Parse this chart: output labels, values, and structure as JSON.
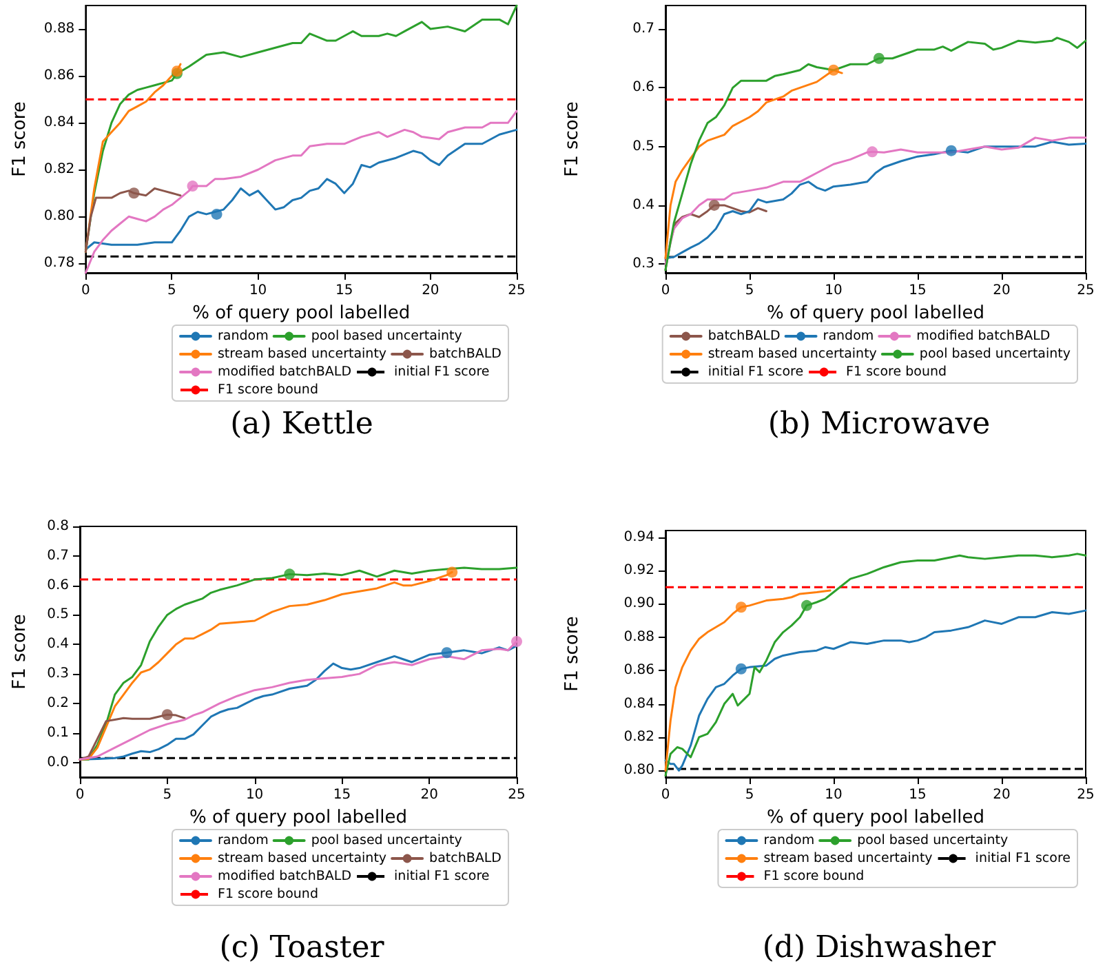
{
  "chart_data": [
    {
      "type": "line",
      "title": "(a) Kettle",
      "xlabel": "% of query pool labelled",
      "ylabel": "F1 score",
      "xlim": [
        0,
        25
      ],
      "xticks": [
        0,
        5,
        10,
        15,
        20,
        25
      ],
      "ylim": [
        0.776,
        0.89
      ],
      "yticks": [
        0.78,
        {
          "value": 0.8,
          "label": "0.80"
        },
        0.82,
        0.84,
        0.86,
        0.88
      ],
      "grid": false,
      "legend": "bottom right",
      "marker": "none",
      "line_style": "solid",
      "series": [
        {
          "name": "random",
          "color": "#1f77b4",
          "x": [
            0,
            0.5,
            1.5,
            3,
            4,
            5,
            5.5,
            6,
            6.5,
            7,
            7.5,
            8,
            8.5,
            9,
            9.5,
            10,
            10.5,
            11,
            11.5,
            12,
            12.5,
            13,
            13.5,
            14,
            14.5,
            15,
            15.5,
            16,
            16.5,
            17,
            18,
            19,
            19.5,
            20,
            20.5,
            21,
            22,
            22.5,
            23,
            23.5,
            24,
            25
          ],
          "values": [
            0.786,
            0.789,
            0.788,
            0.788,
            0.789,
            0.789,
            0.794,
            0.8,
            0.802,
            0.801,
            0.802,
            0.803,
            0.807,
            0.812,
            0.809,
            0.811,
            0.807,
            0.803,
            0.804,
            0.807,
            0.808,
            0.811,
            0.812,
            0.816,
            0.814,
            0.81,
            0.814,
            0.822,
            0.821,
            0.823,
            0.825,
            0.828,
            0.827,
            0.824,
            0.822,
            0.826,
            0.831,
            0.831,
            0.831,
            0.833,
            0.835,
            0.837
          ]
        },
        {
          "name": "pool based uncertainty",
          "color": "#2ca02c",
          "x": [
            0,
            0.5,
            1,
            1.5,
            2,
            2.5,
            3,
            3.5,
            4,
            5,
            5.3,
            6,
            7,
            8,
            9,
            10,
            11,
            12,
            12.5,
            13,
            14,
            14.5,
            15.5,
            16,
            17,
            17.5,
            18,
            18.5,
            19,
            19.5,
            20,
            21,
            22,
            23,
            24,
            24.5,
            25
          ],
          "values": [
            0.785,
            0.81,
            0.828,
            0.84,
            0.848,
            0.852,
            0.854,
            0.855,
            0.856,
            0.858,
            0.861,
            0.864,
            0.869,
            0.87,
            0.868,
            0.87,
            0.872,
            0.874,
            0.874,
            0.878,
            0.875,
            0.875,
            0.879,
            0.877,
            0.877,
            0.878,
            0.877,
            0.879,
            0.881,
            0.883,
            0.88,
            0.881,
            0.879,
            0.884,
            0.884,
            0.882,
            0.89
          ]
        },
        {
          "name": "stream based uncertainty",
          "color": "#ff7f0e",
          "x": [
            0,
            0.5,
            1,
            1.5,
            2,
            2.5,
            3,
            3.5,
            4,
            4.5,
            5,
            5.3,
            5.5
          ],
          "values": [
            0.785,
            0.812,
            0.832,
            0.836,
            0.84,
            0.845,
            0.847,
            0.849,
            0.853,
            0.856,
            0.86,
            0.862,
            0.865
          ]
        },
        {
          "name": "batchBALD",
          "color": "#8c564b",
          "x": [
            0,
            0.3,
            0.6,
            1,
            1.5,
            2,
            2.5,
            2.8,
            3.5,
            4,
            4.5,
            5,
            5.5
          ],
          "values": [
            0.785,
            0.8,
            0.808,
            0.808,
            0.808,
            0.81,
            0.811,
            0.81,
            0.809,
            0.812,
            0.811,
            0.81,
            0.809
          ]
        },
        {
          "name": "modified batchBALD",
          "color": "#e377c2",
          "x": [
            0,
            0.5,
            1,
            1.5,
            2,
            2.5,
            3,
            3.5,
            4,
            4.5,
            5,
            5.5,
            6,
            6.2,
            7,
            7.5,
            8,
            9,
            10,
            11,
            12,
            12.5,
            13,
            14,
            15,
            16,
            17,
            17.5,
            18.5,
            19,
            19.5,
            20.5,
            21,
            22,
            23,
            23.5,
            24.5,
            25
          ],
          "values": [
            0.776,
            0.785,
            0.79,
            0.794,
            0.797,
            0.8,
            0.799,
            0.798,
            0.8,
            0.803,
            0.805,
            0.808,
            0.811,
            0.813,
            0.813,
            0.816,
            0.816,
            0.817,
            0.82,
            0.824,
            0.826,
            0.826,
            0.83,
            0.831,
            0.831,
            0.834,
            0.836,
            0.834,
            0.837,
            0.836,
            0.834,
            0.833,
            0.836,
            0.838,
            0.838,
            0.84,
            0.84,
            0.845
          ]
        },
        {
          "type": "scatter",
          "marker": "circle",
          "color": "#1f77b4",
          "x": [
            7.6
          ],
          "values": [
            0.801
          ]
        },
        {
          "type": "scatter",
          "marker": "circle",
          "color": "#2ca02c",
          "x": [
            5.3
          ],
          "values": [
            0.861
          ]
        },
        {
          "type": "scatter",
          "marker": "circle",
          "color": "#ff7f0e",
          "x": [
            5.3
          ],
          "values": [
            0.862
          ]
        },
        {
          "type": "scatter",
          "marker": "circle",
          "color": "#8c564b",
          "x": [
            2.8
          ],
          "values": [
            0.81
          ]
        },
        {
          "type": "scatter",
          "marker": "circle",
          "color": "#e377c2",
          "x": [
            6.2
          ],
          "values": [
            0.813
          ]
        }
      ],
      "ref_lines": [
        {
          "axis": "y",
          "value": 0.783,
          "label": "initial F1 score",
          "color": "#000000",
          "line_style": "dashed"
        },
        {
          "axis": "y",
          "value": 0.85,
          "label": "F1 score bound",
          "color": "#ff0000",
          "line_style": "dashed"
        }
      ]
    },
    {
      "type": "line",
      "title": "(b) Microwave",
      "xlabel": "% of query pool labelled",
      "ylabel": "F1 score",
      "xlim": [
        0,
        25
      ],
      "xticks": [
        0,
        5,
        10,
        15,
        20,
        25
      ],
      "ylim": [
        0.285,
        0.74
      ],
      "yticks": [
        0.3,
        0.4,
        0.5,
        0.6,
        0.7
      ],
      "grid": false,
      "legend": "bottom right",
      "marker": "none",
      "line_style": "solid",
      "series": [
        {
          "name": "batchBALD",
          "color": "#8c564b",
          "x": [
            0,
            0.3,
            0.6,
            1,
            1.5,
            2,
            2.5,
            2.9,
            3.5,
            4,
            4.5,
            5,
            5.5,
            6
          ],
          "values": [
            0.29,
            0.34,
            0.37,
            0.38,
            0.385,
            0.38,
            0.39,
            0.4,
            0.4,
            0.395,
            0.39,
            0.388,
            0.395,
            0.39
          ]
        },
        {
          "name": "random",
          "color": "#1f77b4",
          "x": [
            0,
            0.5,
            1,
            1.5,
            2,
            2.5,
            3,
            3.5,
            4,
            4.5,
            5,
            5.5,
            6,
            7,
            7.5,
            8,
            8.5,
            9,
            9.5,
            10,
            11,
            12,
            12.5,
            13,
            14,
            15,
            16,
            17,
            18,
            19,
            20,
            21,
            22,
            23,
            24,
            25
          ],
          "values": [
            0.31,
            0.312,
            0.32,
            0.328,
            0.335,
            0.345,
            0.36,
            0.385,
            0.39,
            0.385,
            0.39,
            0.41,
            0.405,
            0.41,
            0.42,
            0.435,
            0.44,
            0.43,
            0.425,
            0.432,
            0.435,
            0.44,
            0.455,
            0.465,
            0.475,
            0.483,
            0.487,
            0.493,
            0.49,
            0.5,
            0.5,
            0.5,
            0.5,
            0.508,
            0.503,
            0.505
          ]
        },
        {
          "name": "modified batchBALD",
          "color": "#e377c2",
          "x": [
            0,
            0.5,
            1,
            1.5,
            2,
            2.5,
            3,
            3.5,
            4,
            5,
            6,
            7,
            8,
            9,
            10,
            11,
            12,
            12.3,
            13,
            14,
            15,
            16,
            17,
            18,
            19,
            20,
            21,
            22,
            23,
            24,
            25
          ],
          "values": [
            0.3,
            0.36,
            0.378,
            0.385,
            0.4,
            0.41,
            0.41,
            0.41,
            0.42,
            0.425,
            0.43,
            0.44,
            0.44,
            0.455,
            0.47,
            0.478,
            0.49,
            0.491,
            0.49,
            0.495,
            0.49,
            0.49,
            0.49,
            0.495,
            0.5,
            0.495,
            0.498,
            0.515,
            0.51,
            0.515,
            0.515
          ]
        },
        {
          "name": "stream based uncertainty",
          "color": "#ff7f0e",
          "x": [
            0,
            0.3,
            0.6,
            1,
            1.5,
            2,
            2.5,
            3,
            3.5,
            4,
            5,
            5.5,
            6,
            7,
            7.5,
            8,
            9,
            10,
            10.5
          ],
          "values": [
            0.31,
            0.4,
            0.44,
            0.46,
            0.48,
            0.5,
            0.51,
            0.515,
            0.52,
            0.535,
            0.55,
            0.56,
            0.575,
            0.585,
            0.595,
            0.6,
            0.61,
            0.63,
            0.625
          ]
        },
        {
          "name": "pool based uncertainty",
          "color": "#2ca02c",
          "x": [
            0,
            0.5,
            1,
            1.5,
            2,
            2.5,
            3,
            3.5,
            4,
            4.5,
            5,
            6,
            6.5,
            7,
            8,
            8.5,
            9,
            10,
            11,
            12,
            12.7,
            13.5,
            14.5,
            15,
            16,
            16.5,
            17,
            18,
            19,
            19.5,
            20,
            21,
            22,
            23,
            23.3,
            24,
            24.5,
            25
          ],
          "values": [
            0.29,
            0.37,
            0.42,
            0.47,
            0.51,
            0.54,
            0.55,
            0.57,
            0.6,
            0.612,
            0.612,
            0.612,
            0.62,
            0.623,
            0.63,
            0.64,
            0.635,
            0.63,
            0.64,
            0.64,
            0.65,
            0.65,
            0.66,
            0.665,
            0.665,
            0.67,
            0.663,
            0.678,
            0.675,
            0.665,
            0.668,
            0.68,
            0.677,
            0.68,
            0.685,
            0.678,
            0.668,
            0.68
          ]
        },
        {
          "type": "scatter",
          "marker": "circle",
          "color": "#8c564b",
          "x": [
            2.9
          ],
          "values": [
            0.4
          ]
        },
        {
          "type": "scatter",
          "marker": "circle",
          "color": "#1f77b4",
          "x": [
            17
          ],
          "values": [
            0.493
          ]
        },
        {
          "type": "scatter",
          "marker": "circle",
          "color": "#e377c2",
          "x": [
            12.3
          ],
          "values": [
            0.491
          ]
        },
        {
          "type": "scatter",
          "marker": "circle",
          "color": "#ff7f0e",
          "x": [
            10
          ],
          "values": [
            0.63
          ]
        },
        {
          "type": "scatter",
          "marker": "circle",
          "color": "#2ca02c",
          "x": [
            12.7
          ],
          "values": [
            0.65
          ]
        }
      ],
      "ref_lines": [
        {
          "axis": "y",
          "value": 0.312,
          "label": "initial F1 score",
          "color": "#000000",
          "line_style": "dashed"
        },
        {
          "axis": "y",
          "value": 0.58,
          "label": "F1 score bound",
          "color": "#ff0000",
          "line_style": "dashed"
        }
      ]
    },
    {
      "type": "line",
      "title": "(c) Toaster",
      "xlabel": "% of query pool labelled",
      "ylabel": "F1 score",
      "xlim": [
        0,
        25
      ],
      "xticks": [
        0,
        5,
        10,
        15,
        20,
        25
      ],
      "ylim": [
        -0.05,
        0.8
      ],
      "yticks": [
        {
          "value": 0,
          "label": "0.0"
        },
        0.1,
        0.2,
        0.3,
        0.4,
        0.5,
        0.6,
        0.7,
        0.8
      ],
      "grid": false,
      "legend": "bottom right",
      "marker": "none",
      "line_style": "solid",
      "series": [
        {
          "name": "random",
          "color": "#1f77b4",
          "x": [
            0,
            1,
            2,
            2.5,
            3,
            3.5,
            4,
            4.5,
            5,
            5.5,
            6,
            6.5,
            7,
            7.5,
            8,
            8.5,
            9,
            9.5,
            10,
            10.5,
            11,
            12,
            13,
            13.5,
            14,
            14.5,
            15,
            15.5,
            16,
            17,
            18,
            18.5,
            19,
            20,
            21,
            22,
            22.5,
            23,
            24,
            24.5,
            25
          ],
          "values": [
            0.01,
            0.012,
            0.015,
            0.02,
            0.03,
            0.038,
            0.035,
            0.045,
            0.06,
            0.08,
            0.08,
            0.095,
            0.125,
            0.155,
            0.17,
            0.18,
            0.185,
            0.2,
            0.215,
            0.225,
            0.23,
            0.25,
            0.26,
            0.28,
            0.31,
            0.335,
            0.32,
            0.315,
            0.32,
            0.34,
            0.36,
            0.35,
            0.34,
            0.365,
            0.372,
            0.38,
            0.375,
            0.37,
            0.39,
            0.38,
            0.395
          ]
        },
        {
          "name": "pool based uncertainty",
          "color": "#2ca02c",
          "x": [
            0,
            0.5,
            1,
            1.5,
            2,
            2.5,
            3,
            3.5,
            4,
            4.5,
            5,
            5.5,
            6,
            7,
            7.5,
            8,
            9,
            10,
            11,
            12,
            13,
            14,
            15,
            16,
            17,
            18,
            19,
            20,
            21,
            22,
            23,
            24,
            25
          ],
          "values": [
            0.01,
            0.01,
            0.06,
            0.13,
            0.23,
            0.27,
            0.29,
            0.33,
            0.41,
            0.46,
            0.5,
            0.52,
            0.535,
            0.555,
            0.575,
            0.585,
            0.6,
            0.62,
            0.625,
            0.638,
            0.635,
            0.64,
            0.635,
            0.65,
            0.63,
            0.65,
            0.64,
            0.65,
            0.655,
            0.66,
            0.655,
            0.655,
            0.66
          ]
        },
        {
          "name": "stream based uncertainty",
          "color": "#ff7f0e",
          "x": [
            0,
            0.5,
            1,
            1.5,
            2,
            2.5,
            3,
            3.5,
            4,
            4.5,
            5,
            5.5,
            6,
            6.5,
            7,
            7.5,
            8,
            9,
            10,
            11,
            12,
            13,
            14,
            15,
            16,
            17,
            18,
            18.5,
            19,
            20,
            21,
            21.3
          ],
          "values": [
            0.01,
            0.012,
            0.05,
            0.12,
            0.19,
            0.23,
            0.27,
            0.305,
            0.315,
            0.34,
            0.37,
            0.4,
            0.42,
            0.42,
            0.435,
            0.45,
            0.47,
            0.475,
            0.48,
            0.51,
            0.53,
            0.535,
            0.55,
            0.57,
            0.58,
            0.59,
            0.61,
            0.6,
            0.6,
            0.615,
            0.635,
            0.645
          ]
        },
        {
          "name": "batchBALD",
          "color": "#8c564b",
          "x": [
            0,
            0.5,
            1,
            1.5,
            2,
            2.5,
            3,
            4,
            4.5,
            5,
            5.5,
            6
          ],
          "values": [
            0.01,
            0.02,
            0.08,
            0.14,
            0.145,
            0.15,
            0.148,
            0.148,
            0.155,
            0.162,
            0.16,
            0.15
          ]
        },
        {
          "name": "modified batchBALD",
          "color": "#e377c2",
          "x": [
            0,
            1,
            2,
            3,
            4,
            5,
            6,
            6.5,
            7,
            8,
            9,
            10,
            11,
            12,
            13,
            14,
            15,
            16,
            17,
            18,
            19,
            20,
            21,
            22,
            23,
            24,
            24.5,
            25
          ],
          "values": [
            0.01,
            0.02,
            0.05,
            0.08,
            0.11,
            0.13,
            0.145,
            0.16,
            0.17,
            0.2,
            0.225,
            0.245,
            0.255,
            0.27,
            0.28,
            0.285,
            0.29,
            0.3,
            0.33,
            0.34,
            0.33,
            0.35,
            0.36,
            0.35,
            0.38,
            0.385,
            0.38,
            0.41
          ]
        },
        {
          "type": "scatter",
          "marker": "circle",
          "color": "#1f77b4",
          "x": [
            21
          ],
          "values": [
            0.372
          ]
        },
        {
          "type": "scatter",
          "marker": "circle",
          "color": "#2ca02c",
          "x": [
            12
          ],
          "values": [
            0.638
          ]
        },
        {
          "type": "scatter",
          "marker": "circle",
          "color": "#ff7f0e",
          "x": [
            21.3
          ],
          "values": [
            0.645
          ]
        },
        {
          "type": "scatter",
          "marker": "circle",
          "color": "#8c564b",
          "x": [
            5
          ],
          "values": [
            0.162
          ]
        },
        {
          "type": "scatter",
          "marker": "circle",
          "color": "#e377c2",
          "x": [
            25
          ],
          "values": [
            0.41
          ]
        }
      ],
      "ref_lines": [
        {
          "axis": "y",
          "value": 0.015,
          "label": "initial F1 score",
          "color": "#000000",
          "line_style": "dashed"
        },
        {
          "axis": "y",
          "value": 0.62,
          "label": "F1 score bound",
          "color": "#ff0000",
          "line_style": "dashed"
        }
      ]
    },
    {
      "type": "line",
      "title": "(d) Dishwasher",
      "xlabel": "% of query pool labelled",
      "ylabel": "F1 score",
      "xlim": [
        0,
        25
      ],
      "xticks": [
        0,
        5,
        10,
        15,
        20,
        25
      ],
      "ylim": [
        0.796,
        0.944
      ],
      "yticks": [
        {
          "value": 0.8,
          "label": "0.80"
        },
        0.82,
        0.84,
        0.86,
        0.88,
        {
          "value": 0.9,
          "label": "0.90"
        },
        0.92,
        0.94
      ],
      "grid": false,
      "legend": "bottom right",
      "marker": "none",
      "line_style": "solid",
      "series": [
        {
          "name": "random",
          "color": "#1f77b4",
          "x": [
            0,
            0.3,
            0.5,
            0.8,
            1,
            1.5,
            2,
            2.5,
            3,
            3.5,
            4,
            4.5,
            5,
            6,
            6.5,
            7,
            8,
            9,
            9.5,
            10,
            11,
            12,
            13,
            14,
            14.5,
            15,
            15.5,
            16,
            17,
            18,
            19,
            20,
            21,
            22,
            23,
            24,
            25
          ],
          "values": [
            0.806,
            0.804,
            0.804,
            0.8,
            0.803,
            0.815,
            0.833,
            0.843,
            0.85,
            0.852,
            0.857,
            0.861,
            0.862,
            0.863,
            0.867,
            0.869,
            0.871,
            0.872,
            0.874,
            0.873,
            0.877,
            0.876,
            0.878,
            0.878,
            0.877,
            0.878,
            0.88,
            0.883,
            0.884,
            0.886,
            0.89,
            0.888,
            0.892,
            0.892,
            0.895,
            0.894,
            0.896
          ]
        },
        {
          "name": "pool based uncertainty",
          "color": "#2ca02c",
          "x": [
            0,
            0.3,
            0.7,
            1,
            1.5,
            2,
            2.5,
            3,
            3.5,
            4,
            4.3,
            4.7,
            5,
            5.3,
            5.6,
            6,
            6.5,
            7,
            7.5,
            8,
            8.4,
            9,
            9.5,
            10,
            11,
            12,
            13,
            14,
            15,
            16,
            17,
            17.5,
            18,
            19,
            20,
            21,
            22,
            23,
            24,
            24.5,
            25
          ],
          "values": [
            0.797,
            0.81,
            0.814,
            0.813,
            0.808,
            0.82,
            0.822,
            0.829,
            0.84,
            0.846,
            0.839,
            0.843,
            0.846,
            0.862,
            0.859,
            0.866,
            0.877,
            0.883,
            0.887,
            0.892,
            0.899,
            0.901,
            0.903,
            0.907,
            0.915,
            0.918,
            0.922,
            0.925,
            0.926,
            0.926,
            0.928,
            0.929,
            0.928,
            0.927,
            0.928,
            0.929,
            0.929,
            0.928,
            0.929,
            0.93,
            0.929
          ]
        },
        {
          "name": "stream based uncertainty",
          "color": "#ff7f0e",
          "x": [
            0,
            0.3,
            0.6,
            1,
            1.5,
            2,
            2.5,
            3,
            3.5,
            4,
            4.5,
            5,
            6,
            7,
            7.5,
            8,
            9,
            9.8
          ],
          "values": [
            0.8,
            0.83,
            0.85,
            0.862,
            0.872,
            0.879,
            0.883,
            0.886,
            0.889,
            0.894,
            0.898,
            0.899,
            0.902,
            0.903,
            0.904,
            0.906,
            0.907,
            0.908
          ]
        },
        {
          "type": "scatter",
          "marker": "circle",
          "color": "#1f77b4",
          "x": [
            4.5
          ],
          "values": [
            0.861
          ]
        },
        {
          "type": "scatter",
          "marker": "circle",
          "color": "#2ca02c",
          "x": [
            8.4
          ],
          "values": [
            0.899
          ]
        },
        {
          "type": "scatter",
          "marker": "circle",
          "color": "#ff7f0e",
          "x": [
            4.5
          ],
          "values": [
            0.898
          ]
        }
      ],
      "ref_lines": [
        {
          "axis": "y",
          "value": 0.801,
          "label": "initial F1 score",
          "color": "#000000",
          "line_style": "dashed"
        },
        {
          "axis": "y",
          "value": 0.91,
          "label": "F1 score bound",
          "color": "#ff0000",
          "line_style": "dashed"
        }
      ]
    }
  ]
}
